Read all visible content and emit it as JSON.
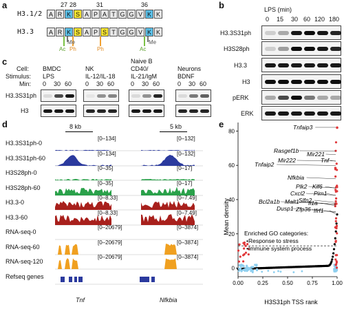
{
  "panels": {
    "a": "a",
    "b": "b",
    "c": "c",
    "d": "d",
    "e": "e"
  },
  "panel_a": {
    "numbers": [
      "27",
      "28",
      "31",
      "36"
    ],
    "seq1_label": "H3.1/2",
    "seq1": [
      "A",
      "R",
      "K",
      "S",
      "A",
      "P",
      "A",
      "T",
      "G",
      "G",
      "V",
      "K",
      "K"
    ],
    "seq2_label": "H3.3",
    "seq2": [
      "A",
      "R",
      "K",
      "S",
      "A",
      "P",
      "S",
      "T",
      "G",
      "G",
      "V",
      "K",
      "K"
    ],
    "mods": {
      "ac1": "Ac",
      "me": "Me",
      "ph1": "Ph",
      "ph2": "Ph",
      "ac2": "Ac",
      "me2": "Me"
    },
    "colors": {
      "blue": "#5bc0e8",
      "yellow": "#f7e430",
      "green": "#7ac143",
      "orange": "#f0a030"
    }
  },
  "panel_b": {
    "header": "LPS (min)",
    "times": [
      "0",
      "15",
      "30",
      "60",
      "120",
      "180"
    ],
    "rows": [
      "H3.3S31ph",
      "H3S28ph",
      "H3.3",
      "H3",
      "pERK",
      "ERK"
    ]
  },
  "panel_c": {
    "row_labels": [
      "Cell:",
      "Stimulus:",
      "Min:"
    ],
    "groups": [
      {
        "cell": "BMDC",
        "stim": "LPS",
        "mins": [
          "0",
          "30",
          "60"
        ]
      },
      {
        "cell": "NK",
        "stim": "IL-12/IL-18",
        "mins": [
          "0",
          "30",
          "60"
        ]
      },
      {
        "cell": "Naive B",
        "cell2": "CD40/",
        "stim": "IL-21/IgM",
        "mins": [
          "0",
          "30",
          "60"
        ]
      },
      {
        "cell": "Neurons",
        "stim": "BDNF",
        "mins": [
          "0",
          "30",
          "60"
        ]
      }
    ],
    "blots": [
      "H3.3S31ph",
      "H3"
    ]
  },
  "panel_d": {
    "scale_left": "8 kb",
    "scale_right": "5 kb",
    "tracks": [
      {
        "name": "H3.3S31ph-0",
        "r1": "[0–134]",
        "r2": "[0–132]",
        "color": "#2b3a9e"
      },
      {
        "name": "H3.3S31ph-60",
        "r1": "[0–134]",
        "r2": "[0–132]",
        "color": "#2b3a9e"
      },
      {
        "name": "H3S28ph-0",
        "r1": "[0–35]",
        "r2": "[0–17]",
        "color": "#2aa14a"
      },
      {
        "name": "H3S28ph-60",
        "r1": "[0–35]",
        "r2": "[0–17]",
        "color": "#2aa14a"
      },
      {
        "name": "H3.3-0",
        "r1": "[0–8.33]",
        "r2": "[0–7.49]",
        "color": "#a8201c"
      },
      {
        "name": "H3.3-60",
        "r1": "[0–8.33]",
        "r2": "[0–7.49]",
        "color": "#a8201c"
      },
      {
        "name": "RNA-seq-0",
        "r1": "[0–20679]",
        "r2": "[0–3874]",
        "color": "#f0a020"
      },
      {
        "name": "RNA-seq-60",
        "r1": "[0–20679]",
        "r2": "[0–3874]",
        "color": "#f0a020"
      },
      {
        "name": "RNA-seq-120",
        "r1": "[0–20679]",
        "r2": "[0–3874]",
        "color": "#f0a020"
      },
      {
        "name": "Refseq genes",
        "r1": "",
        "r2": "",
        "color": "#2b3a9e"
      }
    ],
    "gene_left": "Tnf",
    "gene_right": "Nfkbia"
  },
  "chart_data": {
    "type": "scatter",
    "xlabel": "H3S31ph TSS rank",
    "ylabel": "Mean density",
    "xlim": [
      0,
      1
    ],
    "ylim": [
      -5,
      85
    ],
    "xticks": [
      "0.00",
      "0.25",
      "0.50",
      "0.75",
      "1.00"
    ],
    "yticks": [
      "0",
      "20",
      "40",
      "60",
      "80"
    ],
    "threshold": 13,
    "labeled_genes": [
      "Tnfaip3",
      "Rasgef1b",
      "Mir221",
      "Mir222",
      "Tnf",
      "Tnfaip2",
      "Nfkbia",
      "Plk2",
      "Klf6",
      "Cxcl2",
      "Pim1",
      "Slfn2",
      "Bcl2a1b",
      "Malt1",
      "Il1a",
      "Dusp1",
      "Zfp36",
      "Ifrf1"
    ],
    "go_title": "Enriched GO categories:",
    "go_items": [
      "•Response to stress",
      "•Immune system process"
    ]
  }
}
